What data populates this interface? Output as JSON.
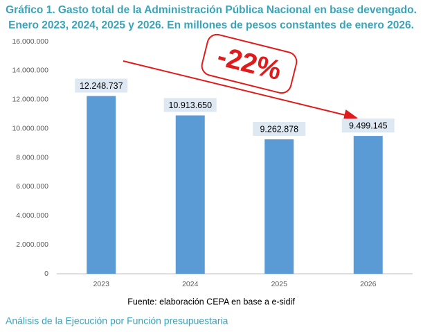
{
  "chart_data": {
    "type": "bar",
    "title": [
      "Gráfico 1. Gasto total de la Administración Pública Nacional en base devengado.",
      "Enero 2023, 2024, 2025 y 2026. En millones de pesos constantes de enero 2026."
    ],
    "categories": [
      "2023",
      "2024",
      "2025",
      "2026"
    ],
    "values": [
      12248737,
      10913650,
      9262878,
      9499145
    ],
    "value_labels": [
      "12.248.737",
      "10.913.650",
      "9.262.878",
      "9.499.145"
    ],
    "color": "#5b9bd5",
    "ylim": [
      0,
      16000000
    ],
    "yticks": [
      0,
      {
        "value": 2000000,
        "label": "2.000.000"
      },
      {
        "value": 4000000,
        "label": "4.000.000"
      },
      {
        "value": 6000000,
        "label": "6.000.000"
      },
      {
        "value": 8000000,
        "label": "8.000.000"
      },
      {
        "value": 10000000,
        "label": "10.000.000"
      },
      {
        "value": 12000000,
        "label": "12.000.000"
      },
      {
        "value": 14000000,
        "label": "14.000.000"
      },
      {
        "value": 16000000,
        "label": "16.000.000"
      }
    ],
    "grid": false,
    "annotation": "-22%",
    "source": "Fuente: elaboración CEPA en base a e-sidif"
  },
  "footer": "Análisis de la Ejecución por Función presupuestaria"
}
